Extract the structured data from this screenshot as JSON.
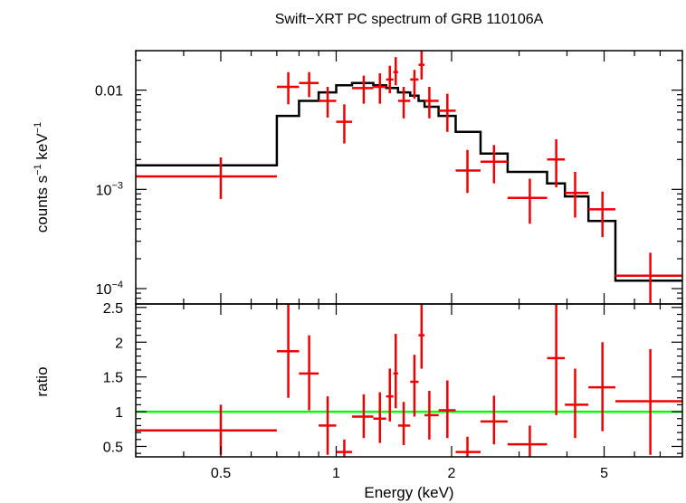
{
  "chart_data": [
    {
      "type": "line",
      "panel": "spectrum",
      "title": "Swift−XRT PC spectrum of GRB 110106A",
      "ylabel_parts": [
        "counts s",
        "−1",
        " keV",
        "−1"
      ],
      "yscale": "log",
      "ylim": [
        7e-05,
        0.025
      ],
      "xscale": "log",
      "xlim": [
        0.3,
        8.0
      ],
      "yticks": [
        {
          "value": 0.01,
          "base": "0.01",
          "exp": ""
        },
        {
          "value": 0.001,
          "base": "10",
          "exp": "−3"
        },
        {
          "value": 0.0001,
          "base": "10",
          "exp": "−4"
        }
      ],
      "series": [
        {
          "kind": "data",
          "color": "#ee0000",
          "points": [
            {
              "x": 0.5,
              "xlo": 0.3,
              "xhi": 0.7,
              "y": 0.00135,
              "ylo": 0.0008,
              "yhi": 0.0021
            },
            {
              "x": 0.75,
              "xlo": 0.7,
              "xhi": 0.8,
              "y": 0.0108,
              "ylo": 0.0072,
              "yhi": 0.0152
            },
            {
              "x": 0.85,
              "xlo": 0.8,
              "xhi": 0.9,
              "y": 0.0118,
              "ylo": 0.0085,
              "yhi": 0.0152
            },
            {
              "x": 0.95,
              "xlo": 0.9,
              "xhi": 1.0,
              "y": 0.0078,
              "ylo": 0.0053,
              "yhi": 0.0108
            },
            {
              "x": 1.05,
              "xlo": 1.0,
              "xhi": 1.1,
              "y": 0.0048,
              "ylo": 0.0029,
              "yhi": 0.0072
            },
            {
              "x": 1.18,
              "xlo": 1.1,
              "xhi": 1.25,
              "y": 0.0105,
              "ylo": 0.0073,
              "yhi": 0.014
            },
            {
              "x": 1.3,
              "xlo": 1.25,
              "xhi": 1.35,
              "y": 0.0108,
              "ylo": 0.0073,
              "yhi": 0.0148
            },
            {
              "x": 1.38,
              "xlo": 1.35,
              "xhi": 1.41,
              "y": 0.0128,
              "ylo": 0.0093,
              "yhi": 0.0176
            },
            {
              "x": 1.43,
              "xlo": 1.41,
              "xhi": 1.45,
              "y": 0.0152,
              "ylo": 0.0112,
              "yhi": 0.0215
            },
            {
              "x": 1.5,
              "xlo": 1.45,
              "xhi": 1.56,
              "y": 0.0078,
              "ylo": 0.0052,
              "yhi": 0.0108
            },
            {
              "x": 1.6,
              "xlo": 1.56,
              "xhi": 1.64,
              "y": 0.0128,
              "ylo": 0.0082,
              "yhi": 0.016
            },
            {
              "x": 1.67,
              "xlo": 1.64,
              "xhi": 1.7,
              "y": 0.018,
              "ylo": 0.0128,
              "yhi": 0.025
            },
            {
              "x": 1.75,
              "xlo": 1.7,
              "xhi": 1.85,
              "y": 0.0078,
              "ylo": 0.0052,
              "yhi": 0.0108
            },
            {
              "x": 1.95,
              "xlo": 1.85,
              "xhi": 2.05,
              "y": 0.0062,
              "ylo": 0.0038,
              "yhi": 0.0092
            },
            {
              "x": 2.2,
              "xlo": 2.05,
              "xhi": 2.38,
              "y": 0.00155,
              "ylo": 0.00092,
              "yhi": 0.0025
            },
            {
              "x": 2.58,
              "xlo": 2.38,
              "xhi": 2.8,
              "y": 0.0019,
              "ylo": 0.00115,
              "yhi": 0.0028
            },
            {
              "x": 3.2,
              "xlo": 2.8,
              "xhi": 3.55,
              "y": 0.00082,
              "ylo": 0.00045,
              "yhi": 0.00128
            },
            {
              "x": 3.75,
              "xlo": 3.55,
              "xhi": 3.95,
              "y": 0.002,
              "ylo": 0.00105,
              "yhi": 0.0032
            },
            {
              "x": 4.2,
              "xlo": 3.95,
              "xhi": 4.55,
              "y": 0.00092,
              "ylo": 0.00052,
              "yhi": 0.0015
            },
            {
              "x": 4.95,
              "xlo": 4.55,
              "xhi": 5.35,
              "y": 0.00063,
              "ylo": 0.00033,
              "yhi": 0.00095
            },
            {
              "x": 6.6,
              "xlo": 5.35,
              "xhi": 8.0,
              "y": 0.000135,
              "ylo": 7e-05,
              "yhi": 0.00023
            }
          ]
        },
        {
          "kind": "model",
          "color": "#000000",
          "steps": [
            {
              "xlo": 0.3,
              "xhi": 0.7,
              "y": 0.00175
            },
            {
              "xlo": 0.7,
              "xhi": 0.8,
              "y": 0.0055
            },
            {
              "xlo": 0.8,
              "xhi": 0.9,
              "y": 0.0078
            },
            {
              "xlo": 0.9,
              "xhi": 1.0,
              "y": 0.0095
            },
            {
              "xlo": 1.0,
              "xhi": 1.1,
              "y": 0.0112
            },
            {
              "xlo": 1.1,
              "xhi": 1.25,
              "y": 0.0118
            },
            {
              "xlo": 1.25,
              "xhi": 1.35,
              "y": 0.0112
            },
            {
              "xlo": 1.35,
              "xhi": 1.45,
              "y": 0.0105
            },
            {
              "xlo": 1.45,
              "xhi": 1.56,
              "y": 0.0095
            },
            {
              "xlo": 1.56,
              "xhi": 1.64,
              "y": 0.0088
            },
            {
              "xlo": 1.64,
              "xhi": 1.7,
              "y": 0.0078
            },
            {
              "xlo": 1.7,
              "xhi": 1.85,
              "y": 0.0068
            },
            {
              "xlo": 1.85,
              "xhi": 2.05,
              "y": 0.0055
            },
            {
              "xlo": 2.05,
              "xhi": 2.38,
              "y": 0.0038
            },
            {
              "xlo": 2.38,
              "xhi": 2.8,
              "y": 0.0023
            },
            {
              "xlo": 2.8,
              "xhi": 3.55,
              "y": 0.0015
            },
            {
              "xlo": 3.55,
              "xhi": 3.95,
              "y": 0.00115
            },
            {
              "xlo": 3.95,
              "xhi": 4.55,
              "y": 0.00085
            },
            {
              "xlo": 4.55,
              "xhi": 5.35,
              "y": 0.00048
            },
            {
              "xlo": 5.35,
              "xhi": 8.0,
              "y": 0.00012
            }
          ]
        }
      ]
    },
    {
      "type": "line",
      "panel": "ratio",
      "xlabel": "Energy (keV)",
      "ylabel": "ratio",
      "xscale": "log",
      "xlim": [
        0.3,
        8.0
      ],
      "ylim": [
        0.35,
        2.55
      ],
      "xticks": [
        {
          "value": 0.5,
          "label": "0.5"
        },
        {
          "value": 1,
          "label": "1"
        },
        {
          "value": 2,
          "label": "2"
        },
        {
          "value": 5,
          "label": "5"
        }
      ],
      "yticks": [
        {
          "value": 0.5,
          "label": "0.5"
        },
        {
          "value": 1,
          "label": "1"
        },
        {
          "value": 1.5,
          "label": "1.5"
        },
        {
          "value": 2,
          "label": "2"
        },
        {
          "value": 2.5,
          "label": "2.5"
        }
      ],
      "reference_line": {
        "y": 1,
        "color": "#00ff00"
      },
      "series": [
        {
          "kind": "data",
          "color": "#ee0000",
          "points": [
            {
              "x": 0.5,
              "xlo": 0.3,
              "xhi": 0.7,
              "y": 0.73,
              "ylo": 0.38,
              "yhi": 1.1
            },
            {
              "x": 0.75,
              "xlo": 0.7,
              "xhi": 0.8,
              "y": 1.87,
              "ylo": 1.2,
              "yhi": 2.55
            },
            {
              "x": 0.85,
              "xlo": 0.8,
              "xhi": 0.9,
              "y": 1.55,
              "ylo": 1.02,
              "yhi": 2.1
            },
            {
              "x": 0.95,
              "xlo": 0.9,
              "xhi": 1.0,
              "y": 0.8,
              "ylo": 0.38,
              "yhi": 1.22
            },
            {
              "x": 1.05,
              "xlo": 1.0,
              "xhi": 1.1,
              "y": 0.42,
              "ylo": 0.35,
              "yhi": 0.6
            },
            {
              "x": 1.18,
              "xlo": 1.1,
              "xhi": 1.25,
              "y": 0.93,
              "ylo": 0.62,
              "yhi": 1.25
            },
            {
              "x": 1.3,
              "xlo": 1.25,
              "xhi": 1.35,
              "y": 0.9,
              "ylo": 0.55,
              "yhi": 1.28
            },
            {
              "x": 1.38,
              "xlo": 1.35,
              "xhi": 1.41,
              "y": 1.22,
              "ylo": 0.86,
              "yhi": 1.62
            },
            {
              "x": 1.43,
              "xlo": 1.41,
              "xhi": 1.45,
              "y": 1.55,
              "ylo": 1.05,
              "yhi": 2.12
            },
            {
              "x": 1.5,
              "xlo": 1.45,
              "xhi": 1.56,
              "y": 0.8,
              "ylo": 0.52,
              "yhi": 1.14
            },
            {
              "x": 1.6,
              "xlo": 1.56,
              "xhi": 1.64,
              "y": 1.43,
              "ylo": 0.93,
              "yhi": 1.82
            },
            {
              "x": 1.67,
              "xlo": 1.64,
              "xhi": 1.7,
              "y": 2.1,
              "ylo": 1.62,
              "yhi": 2.55
            },
            {
              "x": 1.75,
              "xlo": 1.7,
              "xhi": 1.85,
              "y": 0.95,
              "ylo": 0.6,
              "yhi": 1.3
            },
            {
              "x": 1.95,
              "xlo": 1.85,
              "xhi": 2.05,
              "y": 1.02,
              "ylo": 0.62,
              "yhi": 1.45
            },
            {
              "x": 2.2,
              "xlo": 2.05,
              "xhi": 2.38,
              "y": 0.42,
              "ylo": 0.35,
              "yhi": 0.64
            },
            {
              "x": 2.58,
              "xlo": 2.38,
              "xhi": 2.8,
              "y": 0.86,
              "ylo": 0.53,
              "yhi": 1.23
            },
            {
              "x": 3.2,
              "xlo": 2.8,
              "xhi": 3.55,
              "y": 0.53,
              "ylo": 0.35,
              "yhi": 0.8
            },
            {
              "x": 3.75,
              "xlo": 3.55,
              "xhi": 3.95,
              "y": 1.77,
              "ylo": 0.95,
              "yhi": 2.55
            },
            {
              "x": 4.2,
              "xlo": 3.95,
              "xhi": 4.55,
              "y": 1.1,
              "ylo": 0.62,
              "yhi": 1.62
            },
            {
              "x": 4.95,
              "xlo": 4.55,
              "xhi": 5.35,
              "y": 1.35,
              "ylo": 0.72,
              "yhi": 2.0
            },
            {
              "x": 6.6,
              "xlo": 5.35,
              "xhi": 8.0,
              "y": 1.15,
              "ylo": 0.38,
              "yhi": 1.9
            }
          ]
        }
      ]
    }
  ]
}
